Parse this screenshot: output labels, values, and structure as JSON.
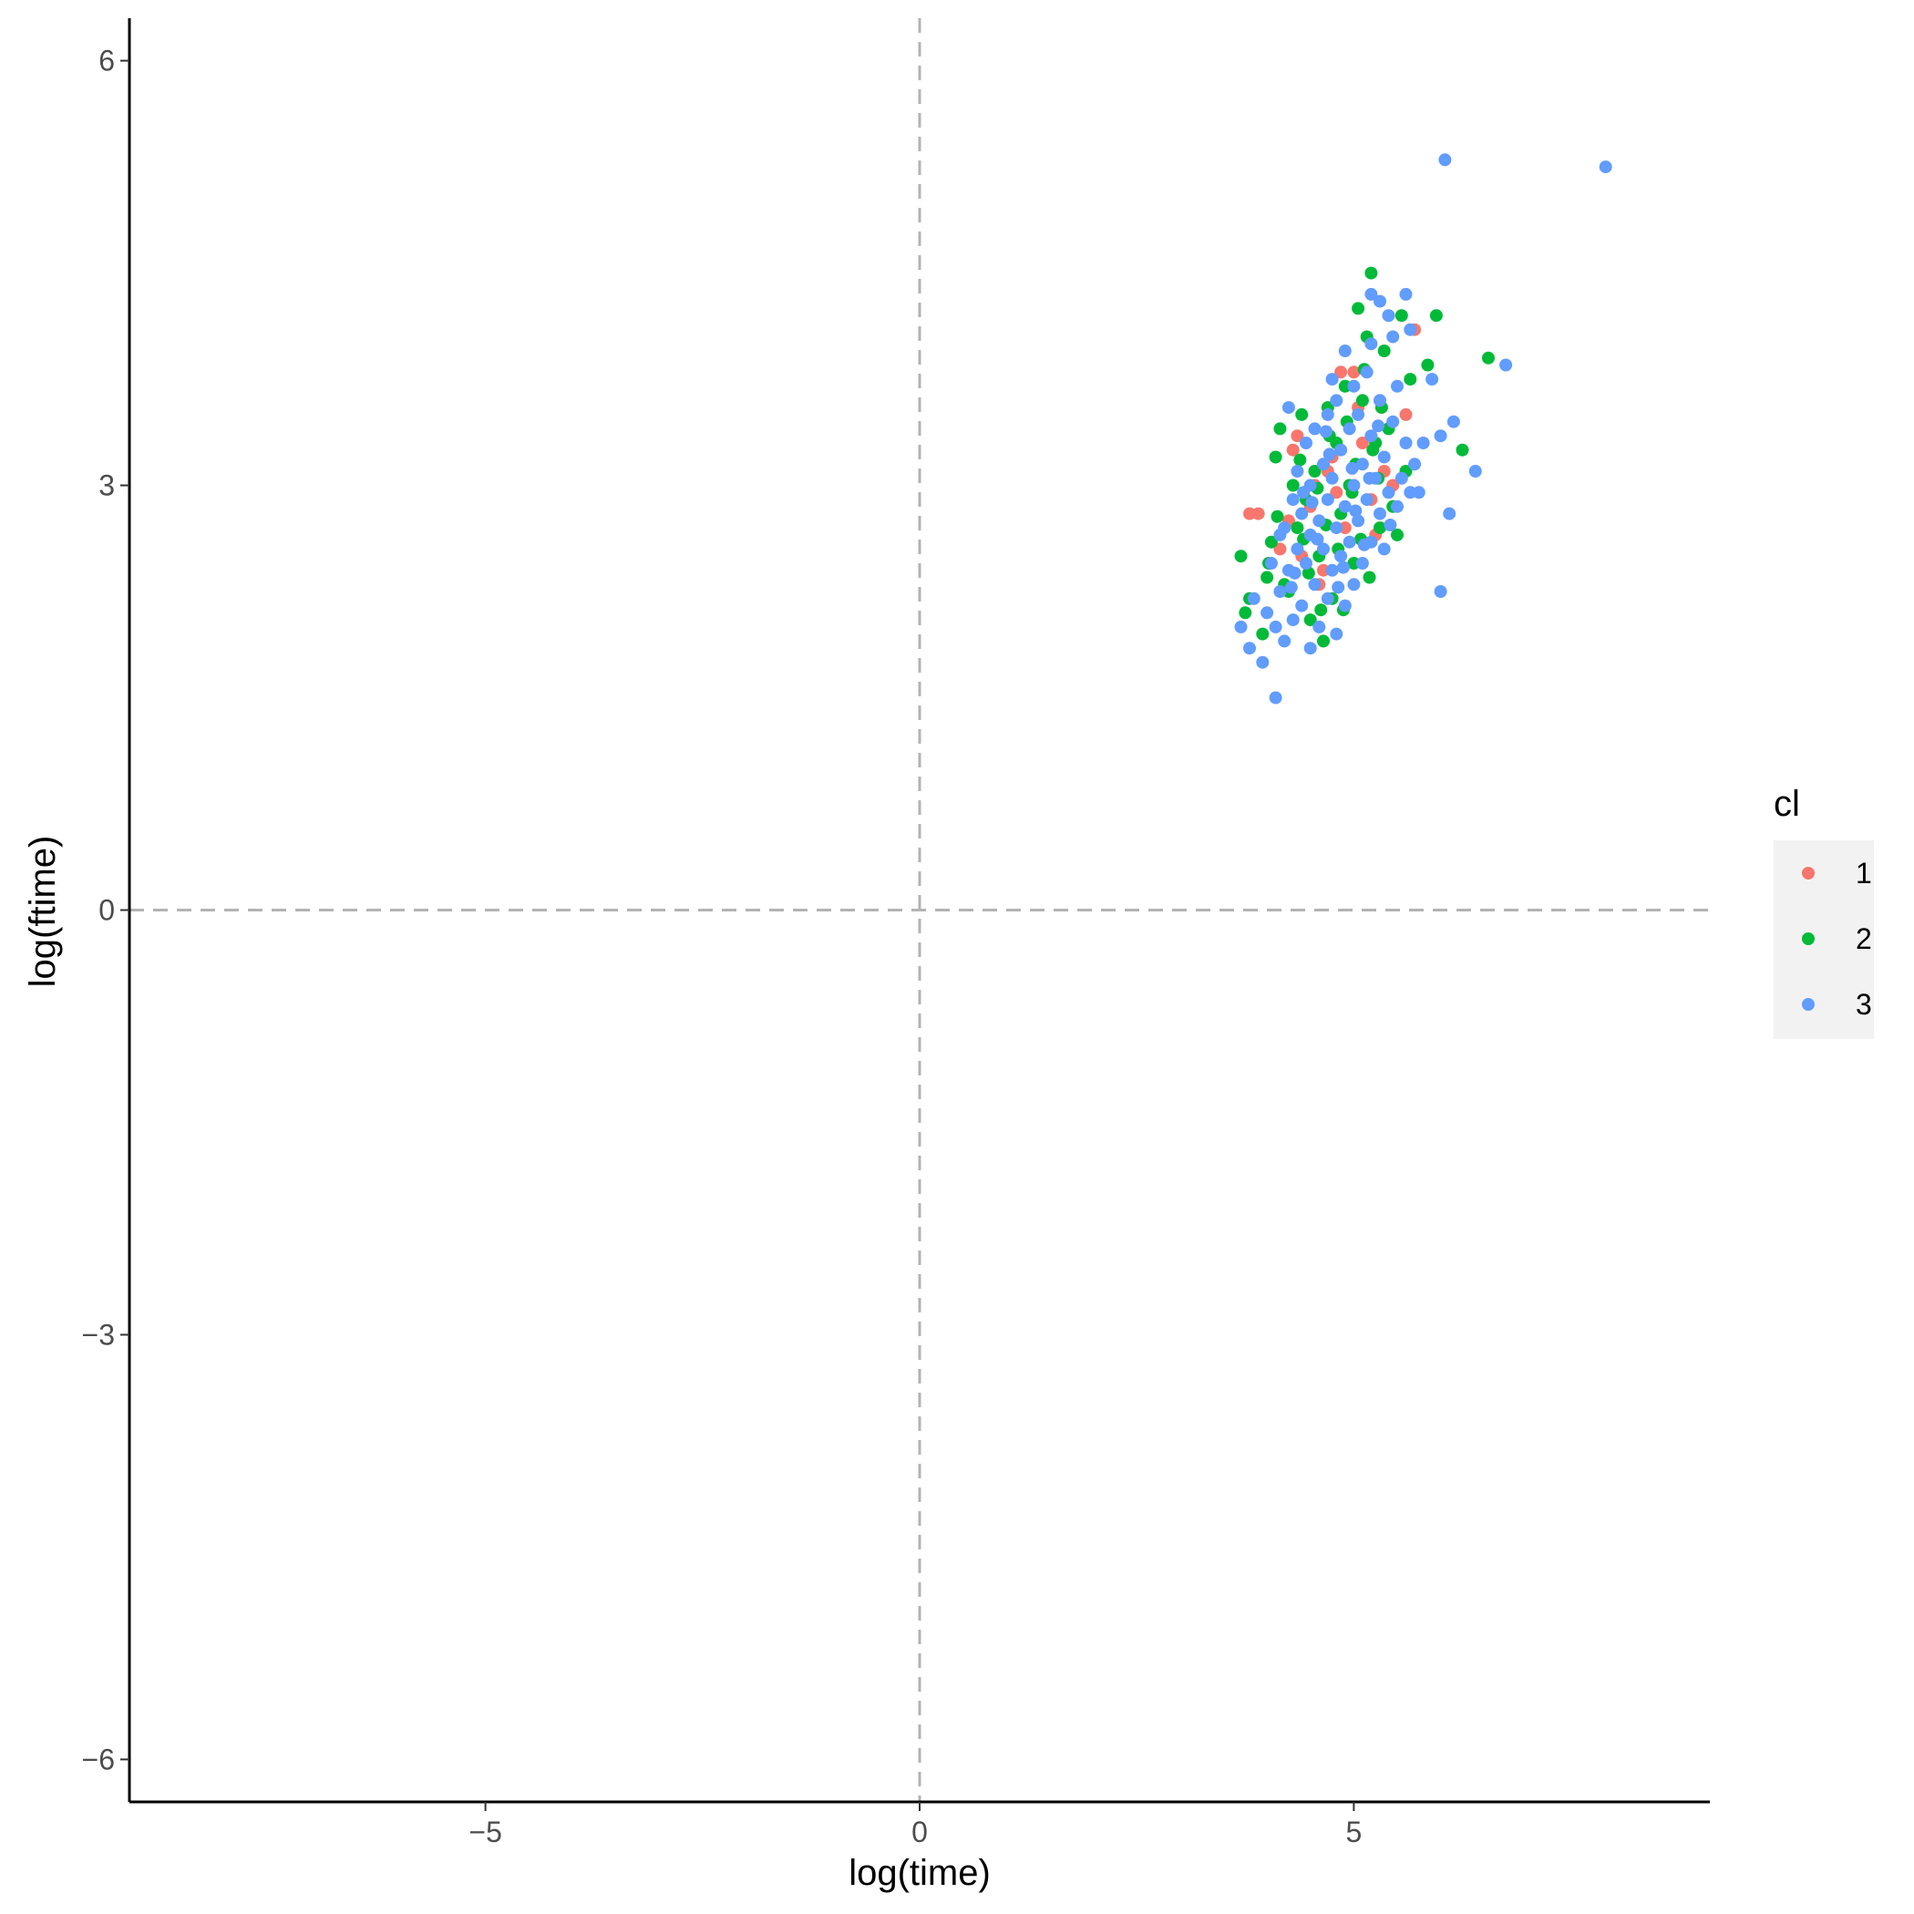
{
  "chart_data": {
    "type": "scatter",
    "title": "",
    "xlabel": "log(time)",
    "ylabel": "log(ftime)",
    "xlim": [
      -9.1,
      9.1
    ],
    "ylim": [
      -6.3,
      6.3
    ],
    "xticks": [
      -5,
      0,
      5
    ],
    "yticks": [
      -6,
      -3,
      0,
      3,
      6
    ],
    "xtick_labels": [
      "−5",
      "0",
      "5"
    ],
    "ytick_labels": [
      "−6",
      "−3",
      "0",
      "3",
      "6"
    ],
    "reference_lines": {
      "x": 0,
      "y": 0,
      "style": "dashed",
      "color": "#b3b3b3"
    },
    "grid": false,
    "legend": {
      "title": "cl",
      "position": "right"
    },
    "series": [
      {
        "name": "1",
        "color": "#F8766D",
        "points": [
          [
            3.8,
            2.8
          ],
          [
            3.9,
            2.8
          ],
          [
            4.3,
            3.25
          ],
          [
            4.25,
            2.75
          ],
          [
            4.55,
            3.0
          ],
          [
            4.7,
            3.1
          ],
          [
            4.85,
            3.8
          ],
          [
            5.0,
            3.8
          ],
          [
            5.2,
            2.9
          ],
          [
            5.3,
            3.6
          ],
          [
            5.35,
            3.1
          ],
          [
            5.6,
            3.5
          ],
          [
            5.7,
            4.1
          ],
          [
            4.4,
            2.5
          ],
          [
            4.9,
            2.7
          ],
          [
            4.6,
            2.3
          ],
          [
            5.1,
            3.3
          ],
          [
            4.8,
            2.95
          ],
          [
            4.35,
            3.35
          ],
          [
            5.45,
            3.0
          ],
          [
            4.15,
            2.55
          ],
          [
            4.65,
            2.4
          ],
          [
            5.05,
            3.55
          ],
          [
            4.5,
            2.85
          ],
          [
            4.75,
            3.2
          ],
          [
            5.25,
            2.65
          ]
        ]
      },
      {
        "name": "2",
        "color": "#00BA38",
        "points": [
          [
            3.7,
            2.5
          ],
          [
            3.75,
            2.1
          ],
          [
            3.8,
            2.2
          ],
          [
            3.95,
            1.95
          ],
          [
            4.0,
            2.35
          ],
          [
            4.05,
            2.6
          ],
          [
            4.1,
            3.2
          ],
          [
            4.15,
            3.4
          ],
          [
            4.2,
            2.3
          ],
          [
            4.3,
            3.0
          ],
          [
            4.35,
            2.7
          ],
          [
            4.4,
            3.5
          ],
          [
            4.45,
            2.9
          ],
          [
            4.5,
            2.05
          ],
          [
            4.55,
            3.1
          ],
          [
            4.6,
            2.5
          ],
          [
            4.65,
            1.9
          ],
          [
            4.7,
            3.55
          ],
          [
            4.75,
            2.2
          ],
          [
            4.8,
            3.3
          ],
          [
            4.85,
            2.8
          ],
          [
            4.9,
            3.7
          ],
          [
            4.95,
            3.0
          ],
          [
            5.0,
            2.45
          ],
          [
            5.05,
            4.25
          ],
          [
            5.1,
            3.6
          ],
          [
            5.15,
            4.05
          ],
          [
            5.2,
            4.5
          ],
          [
            5.25,
            3.3
          ],
          [
            5.3,
            2.7
          ],
          [
            5.35,
            3.95
          ],
          [
            5.4,
            3.4
          ],
          [
            5.5,
            2.65
          ],
          [
            5.55,
            4.2
          ],
          [
            5.6,
            3.1
          ],
          [
            5.65,
            3.75
          ],
          [
            5.85,
            3.85
          ],
          [
            5.95,
            4.2
          ],
          [
            6.25,
            3.25
          ],
          [
            6.55,
            3.9
          ],
          [
            4.25,
            2.25
          ],
          [
            4.42,
            2.62
          ],
          [
            4.58,
            2.98
          ],
          [
            4.72,
            3.35
          ],
          [
            4.88,
            2.12
          ],
          [
            5.02,
            3.15
          ],
          [
            5.18,
            2.35
          ],
          [
            5.32,
            3.55
          ],
          [
            4.12,
            2.78
          ],
          [
            4.38,
            3.18
          ],
          [
            4.62,
            2.12
          ],
          [
            4.82,
            2.55
          ],
          [
            4.98,
            2.95
          ],
          [
            5.12,
            3.82
          ],
          [
            5.28,
            3.05
          ],
          [
            5.45,
            2.85
          ],
          [
            4.02,
            2.45
          ],
          [
            4.48,
            2.38
          ],
          [
            4.68,
            2.72
          ],
          [
            4.92,
            3.45
          ],
          [
            5.08,
            2.62
          ],
          [
            5.22,
            3.25
          ]
        ]
      },
      {
        "name": "3",
        "color": "#619CFF",
        "points": [
          [
            3.7,
            2.0
          ],
          [
            3.8,
            1.85
          ],
          [
            3.85,
            2.2
          ],
          [
            3.95,
            1.75
          ],
          [
            4.0,
            2.1
          ],
          [
            4.05,
            2.45
          ],
          [
            4.1,
            1.5
          ],
          [
            4.1,
            2.0
          ],
          [
            4.15,
            2.25
          ],
          [
            4.2,
            1.9
          ],
          [
            4.2,
            2.7
          ],
          [
            4.25,
            2.4
          ],
          [
            4.3,
            2.05
          ],
          [
            4.3,
            2.9
          ],
          [
            4.35,
            2.55
          ],
          [
            4.35,
            3.1
          ],
          [
            4.4,
            2.15
          ],
          [
            4.4,
            2.8
          ],
          [
            4.45,
            2.45
          ],
          [
            4.45,
            3.3
          ],
          [
            4.5,
            1.85
          ],
          [
            4.5,
            2.65
          ],
          [
            4.5,
            3.0
          ],
          [
            4.55,
            2.3
          ],
          [
            4.55,
            3.4
          ],
          [
            4.6,
            2.0
          ],
          [
            4.6,
            2.75
          ],
          [
            4.65,
            2.55
          ],
          [
            4.65,
            3.15
          ],
          [
            4.7,
            2.2
          ],
          [
            4.7,
            2.9
          ],
          [
            4.7,
            3.5
          ],
          [
            4.75,
            2.4
          ],
          [
            4.75,
            3.05
          ],
          [
            4.8,
            1.95
          ],
          [
            4.8,
            2.7
          ],
          [
            4.8,
            3.6
          ],
          [
            4.85,
            2.5
          ],
          [
            4.85,
            3.25
          ],
          [
            4.9,
            2.15
          ],
          [
            4.9,
            2.85
          ],
          [
            4.9,
            3.95
          ],
          [
            4.95,
            2.6
          ],
          [
            4.95,
            3.4
          ],
          [
            5.0,
            2.3
          ],
          [
            5.0,
            3.0
          ],
          [
            5.0,
            3.7
          ],
          [
            5.05,
            2.75
          ],
          [
            5.05,
            3.5
          ],
          [
            5.1,
            2.45
          ],
          [
            5.1,
            3.15
          ],
          [
            5.15,
            2.9
          ],
          [
            5.15,
            3.8
          ],
          [
            5.2,
            2.6
          ],
          [
            5.2,
            3.35
          ],
          [
            5.2,
            4.35
          ],
          [
            5.25,
            3.05
          ],
          [
            5.3,
            2.8
          ],
          [
            5.3,
            3.6
          ],
          [
            5.3,
            4.3
          ],
          [
            5.35,
            2.55
          ],
          [
            5.35,
            3.2
          ],
          [
            5.4,
            2.95
          ],
          [
            5.4,
            4.2
          ],
          [
            5.45,
            3.45
          ],
          [
            5.5,
            2.85
          ],
          [
            5.5,
            3.7
          ],
          [
            5.55,
            3.05
          ],
          [
            5.6,
            3.3
          ],
          [
            5.6,
            4.35
          ],
          [
            5.65,
            2.95
          ],
          [
            5.7,
            3.15
          ],
          [
            5.75,
            2.95
          ],
          [
            5.8,
            3.3
          ],
          [
            5.9,
            3.75
          ],
          [
            6.0,
            2.25
          ],
          [
            6.0,
            3.35
          ],
          [
            6.1,
            2.8
          ],
          [
            6.15,
            3.45
          ],
          [
            6.4,
            3.1
          ],
          [
            6.05,
            5.3
          ],
          [
            7.9,
            5.25
          ],
          [
            6.75,
            3.85
          ],
          [
            5.65,
            4.1
          ],
          [
            5.45,
            4.05
          ],
          [
            5.2,
            4.0
          ],
          [
            4.75,
            3.75
          ],
          [
            4.25,
            3.55
          ],
          [
            4.15,
            2.65
          ],
          [
            4.28,
            2.28
          ],
          [
            4.42,
            2.95
          ],
          [
            4.58,
            2.62
          ],
          [
            4.72,
            3.22
          ],
          [
            4.88,
            2.42
          ],
          [
            5.02,
            2.82
          ],
          [
            5.18,
            3.05
          ],
          [
            4.32,
            2.38
          ],
          [
            4.52,
            2.88
          ],
          [
            4.68,
            3.38
          ],
          [
            4.82,
            2.28
          ],
          [
            4.98,
            3.12
          ],
          [
            5.12,
            2.58
          ],
          [
            5.28,
            3.42
          ],
          [
            5.42,
            2.72
          ]
        ]
      }
    ]
  }
}
